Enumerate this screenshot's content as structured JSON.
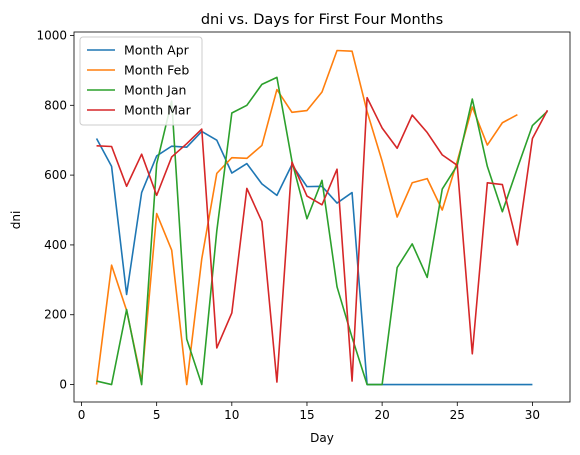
{
  "chart_data": {
    "type": "line",
    "title": "dni vs. Days for First Four Months",
    "xlabel": "Day",
    "ylabel": "dni",
    "xlim": [
      -0.5,
      32.5
    ],
    "ylim": [
      -50,
      1010
    ],
    "xticks": [
      0,
      5,
      10,
      15,
      20,
      25,
      30
    ],
    "yticks": [
      0,
      200,
      400,
      600,
      800,
      1000
    ],
    "grid": false,
    "legend_position": "top-left",
    "series": [
      {
        "name": "Month Apr",
        "color": "#1f77b4",
        "x": [
          1,
          2,
          3,
          4,
          5,
          6,
          7,
          8,
          9,
          10,
          11,
          12,
          13,
          14,
          15,
          16,
          17,
          18,
          19,
          20,
          21,
          22,
          23,
          24,
          25,
          26,
          27,
          28,
          29,
          30
        ],
        "values": [
          705,
          625,
          258,
          550,
          655,
          683,
          680,
          725,
          700,
          606,
          633,
          575,
          542,
          630,
          567,
          568,
          520,
          550,
          0,
          0,
          0,
          0,
          0,
          0,
          0,
          0,
          0,
          0,
          0,
          0
        ]
      },
      {
        "name": "Month Feb",
        "color": "#ff7f0e",
        "x": [
          1,
          2,
          3,
          4,
          5,
          6,
          7,
          8,
          9,
          10,
          11,
          12,
          13,
          14,
          15,
          16,
          17,
          18,
          19,
          20,
          21,
          22,
          23,
          24,
          25,
          26,
          27,
          28,
          29
        ],
        "values": [
          0,
          342,
          212,
          10,
          490,
          385,
          0,
          360,
          605,
          650,
          648,
          685,
          845,
          780,
          785,
          838,
          957,
          955,
          782,
          640,
          480,
          578,
          590,
          500,
          640,
          795,
          686,
          750,
          773
        ]
      },
      {
        "name": "Month Jan",
        "color": "#2ca02c",
        "x": [
          1,
          2,
          3,
          4,
          5,
          6,
          7,
          8,
          9,
          10,
          11,
          12,
          13,
          14,
          15,
          16,
          17,
          18,
          19,
          20,
          21,
          22,
          23,
          24,
          25,
          26,
          27,
          28,
          29,
          30,
          31
        ],
        "values": [
          10,
          0,
          215,
          0,
          632,
          812,
          130,
          0,
          440,
          778,
          800,
          860,
          880,
          640,
          475,
          585,
          280,
          135,
          0,
          0,
          335,
          403,
          307,
          560,
          628,
          818,
          625,
          495,
          620,
          742,
          783
        ]
      },
      {
        "name": "Month Mar",
        "color": "#d62728",
        "x": [
          1,
          2,
          3,
          4,
          5,
          6,
          7,
          8,
          9,
          10,
          11,
          12,
          13,
          14,
          15,
          16,
          17,
          18,
          19,
          20,
          21,
          22,
          23,
          24,
          25,
          26,
          27,
          28,
          29,
          30,
          31
        ],
        "values": [
          684,
          682,
          568,
          660,
          542,
          652,
          690,
          732,
          105,
          205,
          562,
          467,
          7,
          637,
          540,
          515,
          617,
          10,
          822,
          735,
          677,
          772,
          722,
          658,
          628,
          88,
          578,
          573,
          400,
          705,
          786
        ]
      }
    ]
  }
}
